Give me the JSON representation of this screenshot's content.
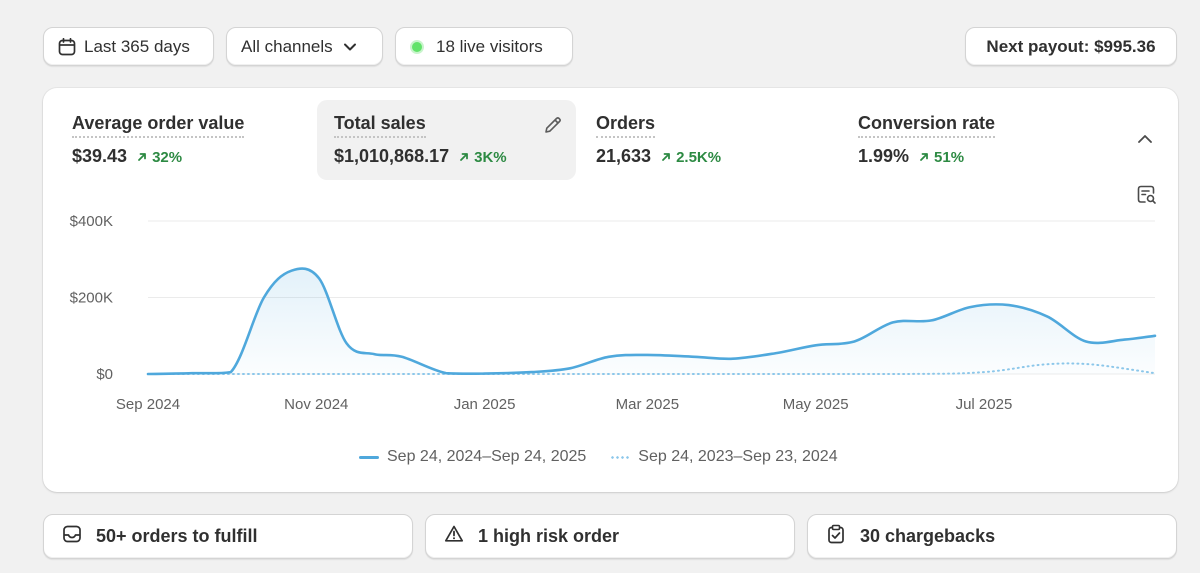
{
  "filters": {
    "date_range": "Last 365 days",
    "channel": "All channels",
    "live_visitors": "18 live visitors",
    "payout": "Next payout: $995.36"
  },
  "metrics": [
    {
      "label": "Average order value",
      "value": "$39.43",
      "change": "32%",
      "selected": false
    },
    {
      "label": "Total sales",
      "value": "$1,010,868.17",
      "change": "3K%",
      "selected": true
    },
    {
      "label": "Orders",
      "value": "21,633",
      "change": "2.5K%",
      "selected": false
    },
    {
      "label": "Conversion rate",
      "value": "1.99%",
      "change": "51%",
      "selected": false
    }
  ],
  "colors": {
    "current_series": "#4fa8dc",
    "previous_series": "#8cc7ea",
    "positive_change": "#2d8a43",
    "live_dot": "#62e36a"
  },
  "icons": {
    "date": "calendar-icon",
    "channel": "chevron-down-icon",
    "edit": "pencil-icon",
    "collapse": "chevron-up-icon",
    "explore": "report-search-icon",
    "change": "arrow-up-right-icon"
  },
  "chart_data": {
    "type": "area",
    "title": "",
    "xlabel": "",
    "ylabel": "",
    "ylim": [
      0,
      400000
    ],
    "y_ticks": [
      {
        "value": 0,
        "label": "$0"
      },
      {
        "value": 200000,
        "label": "$200K"
      },
      {
        "value": 400000,
        "label": "$400K"
      }
    ],
    "x_ticks": [
      "Sep 2024",
      "Nov 2024",
      "Jan 2025",
      "Mar 2025",
      "May 2025",
      "Jul 2025"
    ],
    "grid": true,
    "legend_position": "bottom-center",
    "series": [
      {
        "name": "Sep 24, 2024–Sep 24, 2025",
        "style": "solid-area",
        "x": [
          "2024-09-24",
          "2024-10-10",
          "2024-10-24",
          "2024-11-05",
          "2024-11-15",
          "2024-11-25",
          "2024-12-05",
          "2024-12-15",
          "2024-12-25",
          "2025-01-10",
          "2025-01-24",
          "2025-02-10",
          "2025-02-24",
          "2025-03-10",
          "2025-03-24",
          "2025-04-10",
          "2025-04-24",
          "2025-05-10",
          "2025-05-24",
          "2025-06-07",
          "2025-06-21",
          "2025-07-05",
          "2025-07-19",
          "2025-08-02",
          "2025-08-16",
          "2025-08-30",
          "2025-09-13",
          "2025-09-24"
        ],
        "values": [
          0,
          2000,
          5000,
          200000,
          270000,
          250000,
          80000,
          52000,
          45000,
          2000,
          1000,
          5000,
          15000,
          45000,
          50000,
          45000,
          40000,
          55000,
          75000,
          85000,
          135000,
          140000,
          175000,
          180000,
          150000,
          85000,
          90000,
          100000
        ]
      },
      {
        "name": "Sep 24, 2023–Sep 23, 2024",
        "style": "dotted",
        "x": [
          "2024-09-24",
          "2024-12-24",
          "2025-03-24",
          "2025-06-24",
          "2025-07-24",
          "2025-08-15",
          "2025-09-01",
          "2025-09-24"
        ],
        "values": [
          0,
          0,
          0,
          0,
          5000,
          25000,
          25000,
          2000
        ]
      }
    ]
  },
  "actions": [
    {
      "label": "50+ orders to fulfill",
      "icon": "inbox-icon"
    },
    {
      "label": "1 high risk order",
      "icon": "alert-triangle-icon"
    },
    {
      "label": "30 chargebacks",
      "icon": "clipboard-check-icon"
    }
  ]
}
